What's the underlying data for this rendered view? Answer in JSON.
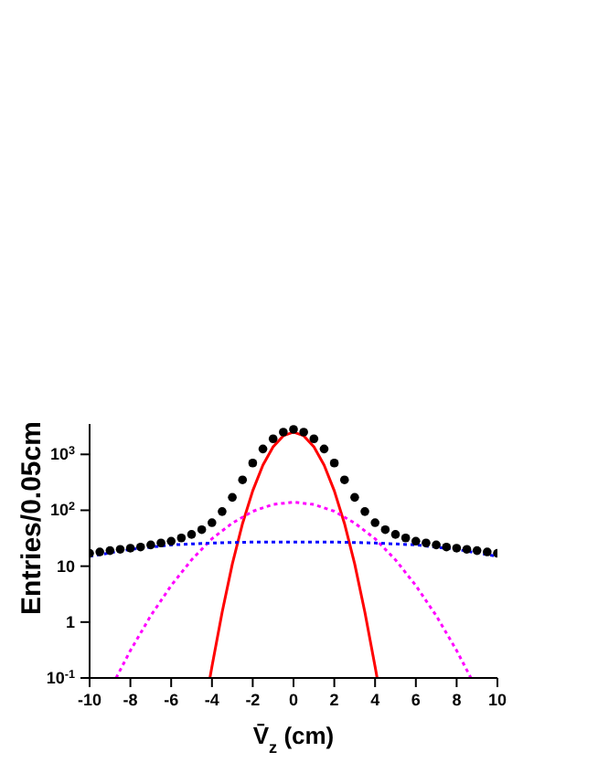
{
  "chart_data": {
    "type": "scatter",
    "xlabel": "V̄$_{z}$   (cm)",
    "ylabel": "Entries/0.05cm",
    "log": "y",
    "grid": false,
    "marker": "circle",
    "xlim": [
      -10,
      10
    ],
    "xticks": [
      -10,
      -8,
      -6,
      -4,
      -2,
      0,
      2,
      4,
      6,
      8,
      10
    ],
    "ylim": [
      0.1,
      3500
    ],
    "yticks": [
      {
        "value": 0.1,
        "label": "10$^{-1}$"
      },
      1,
      10,
      {
        "value": 100,
        "label": "10$^{2}$"
      },
      {
        "value": 1000,
        "label": "10$^{3}$"
      }
    ],
    "series": [
      {
        "color": "#000000",
        "x": [
          -10,
          -9.5,
          -9,
          -8.5,
          -8,
          -7.5,
          -7,
          -6.5,
          -6,
          -5.5,
          -5,
          -4.5,
          -4,
          -3.5,
          -3,
          -2.5,
          -2,
          -1.5,
          -1,
          -0.5,
          0,
          0.5,
          1,
          1.5,
          2,
          2.5,
          3,
          3.5,
          4,
          4.5,
          5,
          5.5,
          6,
          6.5,
          7,
          7.5,
          8,
          8.5,
          9,
          9.5,
          10
        ],
        "values": [
          17,
          18,
          19,
          20,
          21,
          22,
          24,
          26,
          28,
          32,
          37,
          45,
          60,
          95,
          170,
          350,
          700,
          1250,
          1900,
          2500,
          2800,
          2500,
          1900,
          1250,
          700,
          350,
          170,
          95,
          60,
          45,
          37,
          32,
          28,
          26,
          24,
          22,
          21,
          20,
          19,
          18,
          17
        ]
      },
      {
        "type": "line",
        "color": "#ff0000",
        "line_style": "solid",
        "marker": "none",
        "x": [
          -4.1,
          -4,
          -3.5,
          -3,
          -2.5,
          -2,
          -1.5,
          -1,
          -0.5,
          0,
          0.5,
          1,
          1.5,
          2,
          2.5,
          3,
          3.5,
          4,
          4.1
        ],
        "values": [
          0.1,
          0.16,
          1.5,
          11,
          58,
          223,
          642,
          1367,
          2150,
          2500,
          2150,
          1367,
          642,
          223,
          58,
          11,
          1.5,
          0.16,
          0.1
        ]
      },
      {
        "type": "line",
        "color": "#ff00ff",
        "line_style": "dotted",
        "marker": "none",
        "x": [
          -8.7,
          -8,
          -7,
          -6,
          -5,
          -4,
          -3,
          -2,
          -1,
          0,
          1,
          2,
          3,
          4,
          5,
          6,
          7,
          8,
          8.7
        ],
        "values": [
          0.1,
          0.31,
          1.3,
          4.5,
          13,
          31,
          59,
          96,
          127,
          140,
          127,
          96,
          59,
          31,
          13,
          4.5,
          1.3,
          0.31,
          0.1
        ]
      },
      {
        "type": "line",
        "color": "#0000ff",
        "line_style": "dotted",
        "marker": "none",
        "x": [
          -10,
          -8,
          -6,
          -4,
          -2,
          0,
          2,
          4,
          6,
          8,
          10
        ],
        "values": [
          15,
          20,
          24,
          26,
          27,
          27,
          27,
          26,
          24,
          20,
          15
        ]
      }
    ]
  }
}
